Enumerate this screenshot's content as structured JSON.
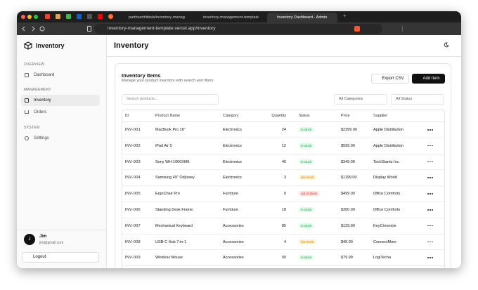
{
  "browser": {
    "tabs": [
      "parthsarthibisla/inventory-manag",
      "inventory-management-template",
      "Inventory Dashboard - Admin"
    ],
    "url": "inventory-management-template.vercel.app/inventory"
  },
  "sidebar": {
    "brand": "Inventory",
    "sections": [
      {
        "title": "OVERVIEW",
        "items": [
          "Dashboard"
        ]
      },
      {
        "title": "MANAGEMENT",
        "items": [
          "Inventory",
          "Orders"
        ]
      },
      {
        "title": "SYSTEM",
        "items": [
          "Settings"
        ]
      }
    ],
    "user": {
      "initial": "J",
      "name": "Jim",
      "email": "jim@gmail.com"
    },
    "logout": "Logout"
  },
  "header": {
    "title": "Inventory"
  },
  "card": {
    "title": "Inventory Items",
    "subtitle": "Manage your product inventory with search and filters",
    "export": "Export CSV",
    "add": "Add Item",
    "search_placeholder": "Search products...",
    "category_filter": "All Categories",
    "status_filter": "All Status"
  },
  "table": {
    "columns": [
      "ID",
      "Product Name",
      "Category",
      "Quantity",
      "Status",
      "Price",
      "Supplier"
    ],
    "rows": [
      {
        "id": "INV-001",
        "name": "MacBook Pro 16\"",
        "category": "Electronics",
        "quantity": 24,
        "status": "in stock",
        "status_color": "#16a34a",
        "status_bg": "#dcfce7",
        "price": "$2399.00",
        "supplier": "Apple Distribution"
      },
      {
        "id": "INV-002",
        "name": "iPad Air 5",
        "category": "Electronics",
        "quantity": 12,
        "status": "in stock",
        "status_color": "#16a34a",
        "status_bg": "#dcfce7",
        "price": "$599.00",
        "supplier": "Apple Distribution"
      },
      {
        "id": "INV-003",
        "name": "Sony WH-1000XM5",
        "category": "Electronics",
        "quantity": 45,
        "status": "in stock",
        "status_color": "#16a34a",
        "status_bg": "#dcfce7",
        "price": "$349.00",
        "supplier": "TechGiants Inc."
      },
      {
        "id": "INV-004",
        "name": "Samsung 49\" Odyssey",
        "category": "Electronics",
        "quantity": 3,
        "status": "low stock",
        "status_color": "#d97706",
        "status_bg": "#fef3c7",
        "price": "$1199.00",
        "supplier": "Display World"
      },
      {
        "id": "INV-005",
        "name": "ErgoChair Pro",
        "category": "Furniture",
        "quantity": 0,
        "status": "out of stock",
        "status_color": "#dc2626",
        "status_bg": "#fee2e2",
        "price": "$499.00",
        "supplier": "Office Comforts"
      },
      {
        "id": "INV-006",
        "name": "Standing Desk Frame",
        "category": "Furniture",
        "quantity": 18,
        "status": "in stock",
        "status_color": "#16a34a",
        "status_bg": "#dcfce7",
        "price": "$350.00",
        "supplier": "Office Comforts"
      },
      {
        "id": "INV-007",
        "name": "Mechanical Keyboard",
        "category": "Accessories",
        "quantity": 85,
        "status": "in stock",
        "status_color": "#16a34a",
        "status_bg": "#dcfce7",
        "price": "$129.99",
        "supplier": "KeyChronicle"
      },
      {
        "id": "INV-008",
        "name": "USB-C Hub 7-in-1",
        "category": "Accessories",
        "quantity": 4,
        "status": "low stock",
        "status_color": "#d97706",
        "status_bg": "#fef3c7",
        "price": "$45.00",
        "supplier": "ConnectMore"
      },
      {
        "id": "INV-009",
        "name": "Wireless Mouse",
        "category": "Accessories",
        "quantity": 50,
        "status": "in stock",
        "status_color": "#16a34a",
        "status_bg": "#dcfce7",
        "price": "$79.99",
        "supplier": "LogiTecha"
      }
    ]
  }
}
